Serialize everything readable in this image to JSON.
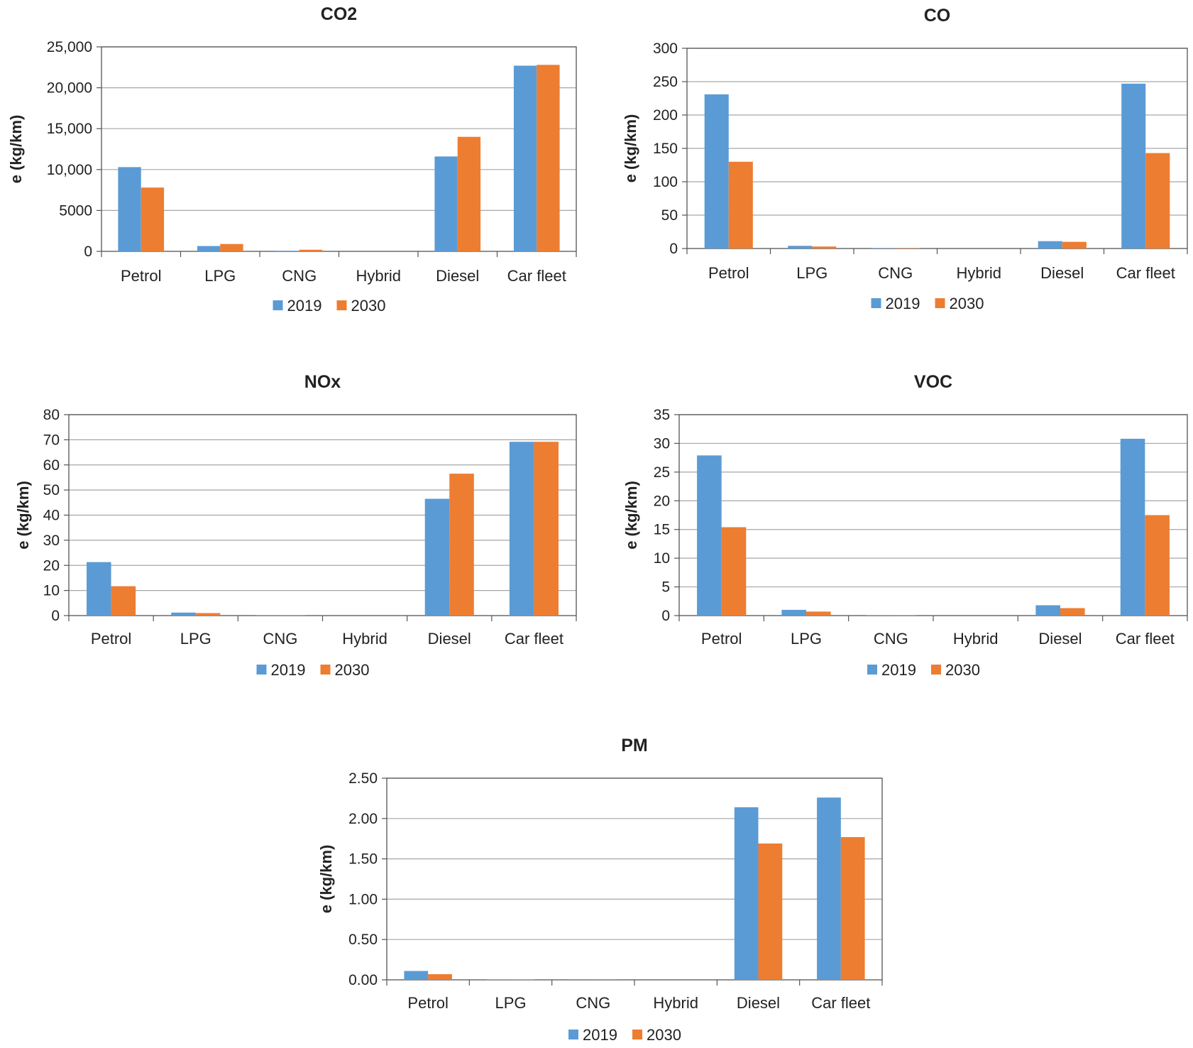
{
  "figure": {
    "colors": {
      "series_2019": "#5B9BD5",
      "series_2030": "#ED7D31",
      "grid": "#a6a6a6",
      "axis": "#555555"
    }
  },
  "chart_data": [
    {
      "type": "bar",
      "title": "CO2",
      "xlabel": "",
      "ylabel": "e (kg/km)",
      "categories": [
        "Petrol",
        "LPG",
        "CNG",
        "Hybrid",
        "Diesel",
        "Car fleet"
      ],
      "series": [
        {
          "name": "2019",
          "values": [
            10300,
            650,
            60,
            0,
            11600,
            22700
          ]
        },
        {
          "name": "2030",
          "values": [
            7800,
            900,
            200,
            0,
            14000,
            22800
          ]
        }
      ],
      "ylim": [
        0,
        25000
      ],
      "yticks": [
        0,
        5000,
        10000,
        15000,
        20000,
        25000
      ],
      "ytick_labels": [
        "0",
        "5000",
        "10,000",
        "15,000",
        "20,000",
        "25,000"
      ],
      "grid": true,
      "legend": "bottom-center"
    },
    {
      "type": "bar",
      "title": "CO",
      "xlabel": "",
      "ylabel": "e (kg/km)",
      "categories": [
        "Petrol",
        "LPG",
        "CNG",
        "Hybrid",
        "Diesel",
        "Car fleet"
      ],
      "series": [
        {
          "name": "2019",
          "values": [
            231,
            4,
            0.5,
            0,
            11,
            247
          ]
        },
        {
          "name": "2030",
          "values": [
            130,
            3,
            0.5,
            0,
            10,
            143
          ]
        }
      ],
      "ylim": [
        0,
        300
      ],
      "yticks": [
        0,
        50,
        100,
        150,
        200,
        250,
        300
      ],
      "ytick_labels": [
        "0",
        "50",
        "100",
        "150",
        "200",
        "250",
        "300"
      ],
      "grid": true,
      "legend": "bottom-center"
    },
    {
      "type": "bar",
      "title": "NOx",
      "xlabel": "",
      "ylabel": "e (kg/km)",
      "categories": [
        "Petrol",
        "LPG",
        "CNG",
        "Hybrid",
        "Diesel",
        "Car fleet"
      ],
      "series": [
        {
          "name": "2019",
          "values": [
            21.3,
            1.2,
            0.1,
            0,
            46.5,
            69.2
          ]
        },
        {
          "name": "2030",
          "values": [
            11.7,
            1.0,
            0.1,
            0,
            56.5,
            69.2
          ]
        }
      ],
      "ylim": [
        0,
        80
      ],
      "yticks": [
        0,
        10,
        20,
        30,
        40,
        50,
        60,
        70,
        80
      ],
      "ytick_labels": [
        "0",
        "10",
        "20",
        "30",
        "40",
        "50",
        "60",
        "70",
        "80"
      ],
      "grid": true,
      "legend": "bottom-center"
    },
    {
      "type": "bar",
      "title": "VOC",
      "xlabel": "",
      "ylabel": "e (kg/km)",
      "categories": [
        "Petrol",
        "LPG",
        "CNG",
        "Hybrid",
        "Diesel",
        "Car fleet"
      ],
      "series": [
        {
          "name": "2019",
          "values": [
            27.9,
            1.0,
            0.05,
            0,
            1.8,
            30.8
          ]
        },
        {
          "name": "2030",
          "values": [
            15.4,
            0.7,
            0.05,
            0,
            1.3,
            17.5
          ]
        }
      ],
      "ylim": [
        0,
        35
      ],
      "yticks": [
        0,
        5,
        10,
        15,
        20,
        25,
        30,
        35
      ],
      "ytick_labels": [
        "0",
        "5",
        "10",
        "15",
        "20",
        "25",
        "30",
        "35"
      ],
      "grid": true,
      "legend": "bottom-center"
    },
    {
      "type": "bar",
      "title": "PM",
      "xlabel": "",
      "ylabel": "e (kg/km)",
      "categories": [
        "Petrol",
        "LPG",
        "CNG",
        "Hybrid",
        "Diesel",
        "Car fleet"
      ],
      "series": [
        {
          "name": "2019",
          "values": [
            0.11,
            0.005,
            0.002,
            0,
            2.14,
            2.26
          ]
        },
        {
          "name": "2030",
          "values": [
            0.07,
            0.004,
            0.002,
            0,
            1.69,
            1.77
          ]
        }
      ],
      "ylim": [
        0,
        2.5
      ],
      "yticks": [
        0,
        0.5,
        1,
        1.5,
        2,
        2.5
      ],
      "ytick_labels": [
        "0.00",
        "0.50",
        "1.00",
        "1.50",
        "2.00",
        "2.50"
      ],
      "grid": true,
      "legend": "bottom-center"
    }
  ]
}
